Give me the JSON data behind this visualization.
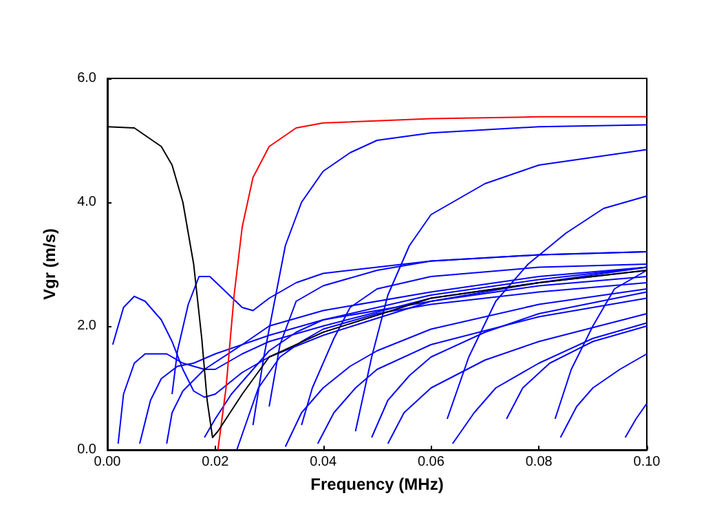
{
  "chart_data": {
    "type": "line",
    "xlabel": "Frequency (MHz)",
    "ylabel": "Vgr (m/s)",
    "xlim": [
      0,
      0.1
    ],
    "xticks": [
      {
        "value": 0,
        "label": "0.00"
      },
      {
        "value": 0.02,
        "label": "0.02"
      },
      {
        "value": 0.04,
        "label": "0.04"
      },
      {
        "value": 0.06,
        "label": "0.06"
      },
      {
        "value": 0.08,
        "label": "0.08"
      },
      {
        "value": 0.1,
        "label": "0.10"
      }
    ],
    "ylim": [
      0,
      6
    ],
    "yticks": [
      {
        "value": 0,
        "label": "0.0"
      },
      {
        "value": 2,
        "label": "2.0"
      },
      {
        "value": 4,
        "label": "4.0"
      },
      {
        "value": 6,
        "label": "6.0"
      }
    ],
    "marker": "none",
    "line_style": "solid",
    "series": [
      {
        "color": "#000000",
        "x": [
          0,
          0.005,
          0.01,
          0.012,
          0.014,
          0.016,
          0.0175,
          0.0185,
          0.0195,
          0.0205,
          0.025,
          0.03,
          0.04,
          0.06,
          0.08,
          0.1
        ],
        "values": [
          5.22,
          5.2,
          4.9,
          4.6,
          4.0,
          3.0,
          1.8,
          0.8,
          0.2,
          0.3,
          0.9,
          1.5,
          1.9,
          2.45,
          2.7,
          2.9
        ]
      },
      {
        "color": "#ff0000",
        "x": [
          0.0205,
          0.022,
          0.0235,
          0.025,
          0.027,
          0.03,
          0.035,
          0.04,
          0.06,
          0.08,
          0.1
        ],
        "values": [
          0,
          1.0,
          2.5,
          3.6,
          4.4,
          4.9,
          5.2,
          5.28,
          5.35,
          5.38,
          5.38
        ]
      },
      {
        "color": "#0000ff",
        "x": [
          0.001,
          0.003,
          0.005,
          0.007,
          0.01,
          0.012,
          0.014,
          0.016,
          0.018,
          0.02,
          0.025,
          0.03,
          0.04,
          0.06,
          0.08,
          0.1
        ],
        "values": [
          1.7,
          2.3,
          2.48,
          2.4,
          2.1,
          1.75,
          1.3,
          0.95,
          0.85,
          0.9,
          1.25,
          1.5,
          1.85,
          2.4,
          2.7,
          2.9
        ]
      },
      {
        "color": "#0000ff",
        "x": [
          0.012,
          0.013,
          0.015,
          0.017,
          0.019,
          0.022,
          0.025,
          0.027,
          0.03,
          0.035,
          0.04,
          0.06,
          0.08,
          0.1
        ],
        "values": [
          0.9,
          1.6,
          2.35,
          2.8,
          2.8,
          2.55,
          2.3,
          2.25,
          2.45,
          2.7,
          2.85,
          3.05,
          3.15,
          3.2
        ]
      },
      {
        "color": "#0000ff",
        "x": [
          0.002,
          0.003,
          0.005,
          0.007,
          0.011,
          0.014,
          0.018,
          0.02,
          0.025,
          0.03,
          0.04,
          0.06,
          0.08,
          0.1
        ],
        "values": [
          0.1,
          0.9,
          1.4,
          1.55,
          1.55,
          1.4,
          1.3,
          1.3,
          1.55,
          1.75,
          2.0,
          2.45,
          2.7,
          2.95
        ]
      },
      {
        "color": "#0000ff",
        "x": [
          0.006,
          0.008,
          0.01,
          0.013,
          0.016,
          0.02,
          0.03,
          0.04,
          0.06,
          0.08,
          0.1
        ],
        "values": [
          0.1,
          0.8,
          1.15,
          1.35,
          1.4,
          1.55,
          1.85,
          2.1,
          2.5,
          2.75,
          2.95
        ]
      },
      {
        "color": "#0000ff",
        "x": [
          0.011,
          0.012,
          0.014,
          0.018,
          0.025,
          0.03,
          0.04,
          0.06,
          0.08,
          0.1
        ],
        "values": [
          0.1,
          0.6,
          0.95,
          1.3,
          1.7,
          2.0,
          2.25,
          2.55,
          2.8,
          2.95
        ]
      },
      {
        "color": "#0000ff",
        "x": [
          0.027,
          0.029,
          0.031,
          0.033,
          0.036,
          0.04,
          0.045,
          0.05,
          0.06,
          0.08,
          0.1
        ],
        "values": [
          0.4,
          1.5,
          2.4,
          3.3,
          4.0,
          4.5,
          4.8,
          5.0,
          5.12,
          5.22,
          5.25
        ]
      },
      {
        "color": "#0000ff",
        "x": [
          0.018,
          0.02,
          0.023,
          0.027,
          0.03,
          0.035,
          0.04,
          0.06,
          0.08,
          0.1
        ],
        "values": [
          0.2,
          0.5,
          0.9,
          1.3,
          1.6,
          1.9,
          2.1,
          2.4,
          2.65,
          2.8
        ]
      },
      {
        "color": "#0000ff",
        "x": [
          0.024,
          0.026,
          0.028,
          0.032,
          0.036,
          0.04,
          0.05,
          0.06,
          0.08,
          0.1
        ],
        "values": [
          0.0,
          0.5,
          1.0,
          1.5,
          1.75,
          1.95,
          2.2,
          2.35,
          2.55,
          2.7
        ]
      },
      {
        "color": "#0000ff",
        "x": [
          0.03,
          0.032,
          0.035,
          0.04,
          0.05,
          0.06,
          0.08,
          0.1
        ],
        "values": [
          0.7,
          1.7,
          2.4,
          2.65,
          2.9,
          3.05,
          3.15,
          3.2
        ]
      },
      {
        "color": "#0000ff",
        "x": [
          0.033,
          0.036,
          0.04,
          0.045,
          0.05,
          0.06,
          0.08,
          0.1
        ],
        "values": [
          0.05,
          0.6,
          1.0,
          1.35,
          1.6,
          1.95,
          2.35,
          2.6
        ]
      },
      {
        "color": "#0000ff",
        "x": [
          0.036,
          0.038,
          0.042,
          0.045,
          0.05,
          0.06,
          0.08,
          0.1
        ],
        "values": [
          0.4,
          1.0,
          1.8,
          2.3,
          2.6,
          2.8,
          2.95,
          3.0
        ]
      },
      {
        "color": "#0000ff",
        "x": [
          0.039,
          0.042,
          0.046,
          0.05,
          0.06,
          0.08,
          0.1
        ],
        "values": [
          0.1,
          0.6,
          1.0,
          1.3,
          1.7,
          2.15,
          2.45
        ]
      },
      {
        "color": "#0000ff",
        "x": [
          0.046,
          0.049,
          0.052,
          0.056,
          0.06,
          0.07,
          0.08,
          0.1
        ],
        "values": [
          0.3,
          1.5,
          2.5,
          3.3,
          3.8,
          4.3,
          4.6,
          4.85
        ]
      },
      {
        "color": "#0000ff",
        "x": [
          0.049,
          0.052,
          0.056,
          0.06,
          0.07,
          0.08,
          0.1
        ],
        "values": [
          0.2,
          0.8,
          1.2,
          1.5,
          1.9,
          2.2,
          2.55
        ]
      },
      {
        "color": "#0000ff",
        "x": [
          0.052,
          0.055,
          0.06,
          0.07,
          0.08,
          0.1
        ],
        "values": [
          0.1,
          0.6,
          1.0,
          1.45,
          1.75,
          2.2
        ]
      },
      {
        "color": "#0000ff",
        "x": [
          0.063,
          0.067,
          0.072,
          0.078,
          0.085,
          0.092,
          0.1
        ],
        "values": [
          0.5,
          1.5,
          2.4,
          3.0,
          3.5,
          3.9,
          4.1
        ]
      },
      {
        "color": "#0000ff",
        "x": [
          0.064,
          0.068,
          0.072,
          0.08,
          0.09,
          0.1
        ],
        "values": [
          0.1,
          0.6,
          1.0,
          1.4,
          1.8,
          2.05
        ]
      },
      {
        "color": "#0000ff",
        "x": [
          0.074,
          0.077,
          0.082,
          0.09,
          0.1
        ],
        "values": [
          0.5,
          1.0,
          1.4,
          1.75,
          2.0
        ]
      },
      {
        "color": "#0000ff",
        "x": [
          0.083,
          0.086,
          0.09,
          0.094,
          0.1
        ],
        "values": [
          0.5,
          1.3,
          2.0,
          2.6,
          2.9
        ]
      },
      {
        "color": "#0000ff",
        "x": [
          0.084,
          0.087,
          0.09,
          0.095,
          0.1
        ],
        "values": [
          0.2,
          0.7,
          1.0,
          1.3,
          1.55
        ]
      },
      {
        "color": "#0000ff",
        "x": [
          0.096,
          0.098,
          0.1
        ],
        "values": [
          0.2,
          0.5,
          0.75
        ]
      }
    ]
  }
}
